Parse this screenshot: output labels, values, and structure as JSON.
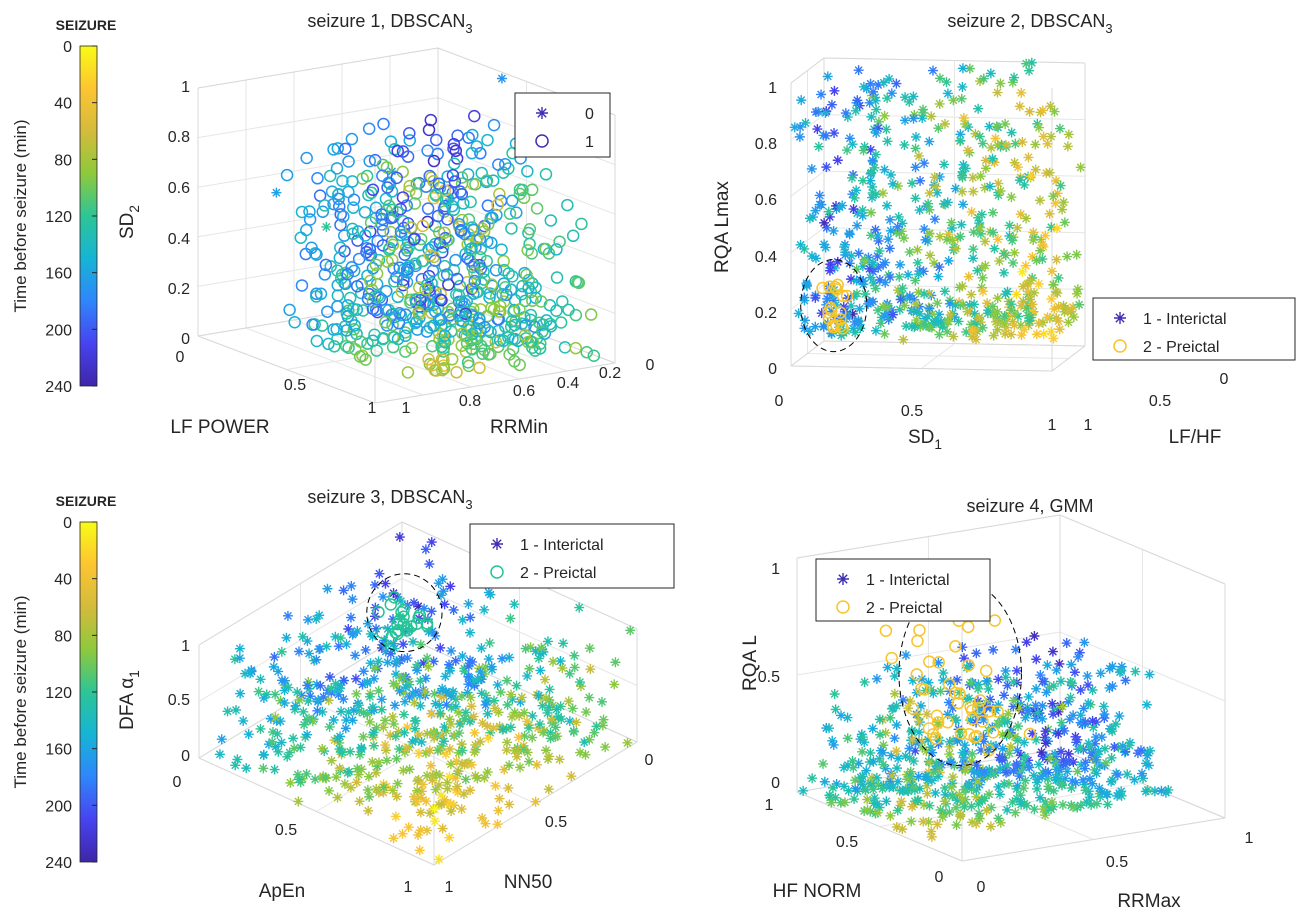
{
  "colors": {
    "colormap": [
      "#3e26a8",
      "#4743f0",
      "#2f86fb",
      "#16b4d5",
      "#2dc596",
      "#8ec93c",
      "#d4bb3c",
      "#fcc532",
      "#f9fb15"
    ],
    "interictal": "#3f2fb4",
    "preictal_1": "#f7c52a",
    "preictal_3": "#22c496",
    "cluster_ring": "#000000",
    "grid": "#e6e6e6",
    "axis": "#d9d9d9"
  },
  "colorbars": [
    {
      "title": "SEIZURE",
      "label": "Time before seizure (min)",
      "ticks": [
        "0",
        "40",
        "80",
        "120",
        "160",
        "200",
        "240"
      ]
    },
    {
      "title": "SEIZURE",
      "label": "Time before seizure (min)",
      "ticks": [
        "0",
        "40",
        "80",
        "120",
        "160",
        "200",
        "240"
      ]
    }
  ],
  "chart_data": [
    {
      "type": "scatter",
      "projection": "3d",
      "title": {
        "main": "seizure 1, DBSCAN",
        "sub": "3"
      },
      "xlabel": "LF POWER",
      "ylabel": "RRMin",
      "zlabel": {
        "main": "SD",
        "sub": "2"
      },
      "x_ticks": [
        "0",
        "0.5",
        "1"
      ],
      "y_ticks": [
        "0",
        "0.2",
        "0.4",
        "0.6",
        "0.8",
        "1"
      ],
      "z_ticks": [
        "0",
        "0.2",
        "0.4",
        "0.6",
        "0.8",
        "1"
      ],
      "xlim": [
        0,
        1
      ],
      "ylim": [
        0,
        1
      ],
      "zlim": [
        0,
        1
      ],
      "grid": true,
      "legend": {
        "position": "top-right",
        "entries": [
          {
            "marker": "asterisk",
            "label": "0"
          },
          {
            "marker": "circle",
            "label": "1"
          }
        ]
      },
      "color_by": "time before seizure (min)",
      "clusters": [
        {
          "label": "0",
          "marker": "asterisk",
          "points": 6,
          "x_range": [
            0.0,
            1.0
          ],
          "y_range": [
            0.3,
            1.0
          ],
          "z_range": [
            0.3,
            1.0
          ]
        },
        {
          "label": "1",
          "marker": "circle",
          "points": 700,
          "x_range": [
            0.0,
            0.9
          ],
          "y_range": [
            0.3,
            1.0
          ],
          "z_range": [
            0.0,
            0.8
          ]
        }
      ]
    },
    {
      "type": "scatter",
      "projection": "3d",
      "title": {
        "main": "seizure 2, DBSCAN",
        "sub": "3"
      },
      "xlabel": {
        "main": "SD",
        "sub": "1"
      },
      "ylabel": "LF/HF",
      "zlabel": "RQA Lmax",
      "x_ticks": [
        "0",
        "0.5",
        "1"
      ],
      "y_ticks": [
        "0",
        "0.5",
        "1"
      ],
      "z_ticks": [
        "0",
        "0.2",
        "0.4",
        "0.6",
        "0.8",
        "1"
      ],
      "xlim": [
        0,
        1
      ],
      "ylim": [
        0,
        1
      ],
      "zlim": [
        0,
        1
      ],
      "grid": true,
      "legend": {
        "position": "bottom-right",
        "entries": [
          {
            "marker": "asterisk",
            "label": "1 - Interictal"
          },
          {
            "marker": "circle",
            "label": "2 - Preictal"
          }
        ]
      },
      "color_by": "time before seizure (min)",
      "clusters": [
        {
          "label": "1 - Interictal",
          "marker": "asterisk",
          "points": 1500,
          "x_range": [
            0.0,
            1.0
          ],
          "y_range": [
            0.0,
            1.0
          ],
          "z_range": [
            0.1,
            1.0
          ]
        },
        {
          "label": "2 - Preictal",
          "marker": "circle",
          "points": 18,
          "x_range": [
            0.0,
            0.1
          ],
          "y_range": [
            0.8,
            1.0
          ],
          "z_range": [
            0.05,
            0.22
          ]
        }
      ]
    },
    {
      "type": "scatter",
      "projection": "3d",
      "title": {
        "main": "seizure 3, DBSCAN",
        "sub": "3"
      },
      "xlabel": "ApEn",
      "ylabel": "NN50",
      "zlabel": {
        "main": "DFA α",
        "sub": "1"
      },
      "x_ticks": [
        "0",
        "0.5",
        "1"
      ],
      "y_ticks": [
        "0",
        "0.5",
        "1"
      ],
      "z_ticks": [
        "0",
        "0.5",
        "1"
      ],
      "xlim": [
        0,
        1
      ],
      "ylim": [
        0,
        1
      ],
      "zlim": [
        0,
        1
      ],
      "grid": true,
      "legend": {
        "position": "top-right",
        "entries": [
          {
            "marker": "asterisk",
            "label": "1 - Interictal"
          },
          {
            "marker": "circle",
            "label": "2 - Preictal"
          }
        ]
      },
      "color_by": "time before seizure (min)",
      "clusters": [
        {
          "label": "1 - Interictal",
          "marker": "asterisk",
          "points": 1200,
          "x_range": [
            0.0,
            1.0
          ],
          "y_range": [
            0.0,
            1.0
          ],
          "z_range": [
            0.0,
            1.0
          ]
        },
        {
          "label": "2 - Preictal",
          "marker": "circle",
          "points": 22,
          "x_range": [
            0.0,
            0.15
          ],
          "y_range": [
            0.85,
            1.0
          ],
          "z_range": [
            0.2,
            0.5
          ]
        }
      ]
    },
    {
      "type": "scatter",
      "projection": "3d",
      "title": "seizure 4, GMM",
      "xlabel": "RRMax",
      "ylabel": "HF NORM",
      "zlabel": "RQA L",
      "x_ticks": [
        "0",
        "0.5",
        "1"
      ],
      "y_ticks": [
        "0",
        "0.5",
        "1"
      ],
      "z_ticks": [
        "0",
        "0.5",
        "1"
      ],
      "xlim": [
        0,
        1
      ],
      "ylim": [
        0,
        1
      ],
      "zlim": [
        0,
        1
      ],
      "grid": true,
      "legend": {
        "position": "top-left",
        "entries": [
          {
            "marker": "asterisk",
            "label": "1 - Interictal"
          },
          {
            "marker": "circle",
            "label": "2 - Preictal"
          }
        ]
      },
      "color_by": "time before seizure (min)",
      "clusters": [
        {
          "label": "1 - Interictal",
          "marker": "asterisk",
          "points": 1100,
          "x_range": [
            0.0,
            0.7
          ],
          "y_range": [
            0.0,
            1.0
          ],
          "z_range": [
            0.0,
            0.55
          ]
        },
        {
          "label": "2 - Preictal",
          "marker": "circle",
          "points": 45,
          "x_range": [
            0.5,
            1.0
          ],
          "y_range": [
            0.0,
            0.3
          ],
          "z_range": [
            0.4,
            1.0
          ]
        }
      ]
    }
  ]
}
